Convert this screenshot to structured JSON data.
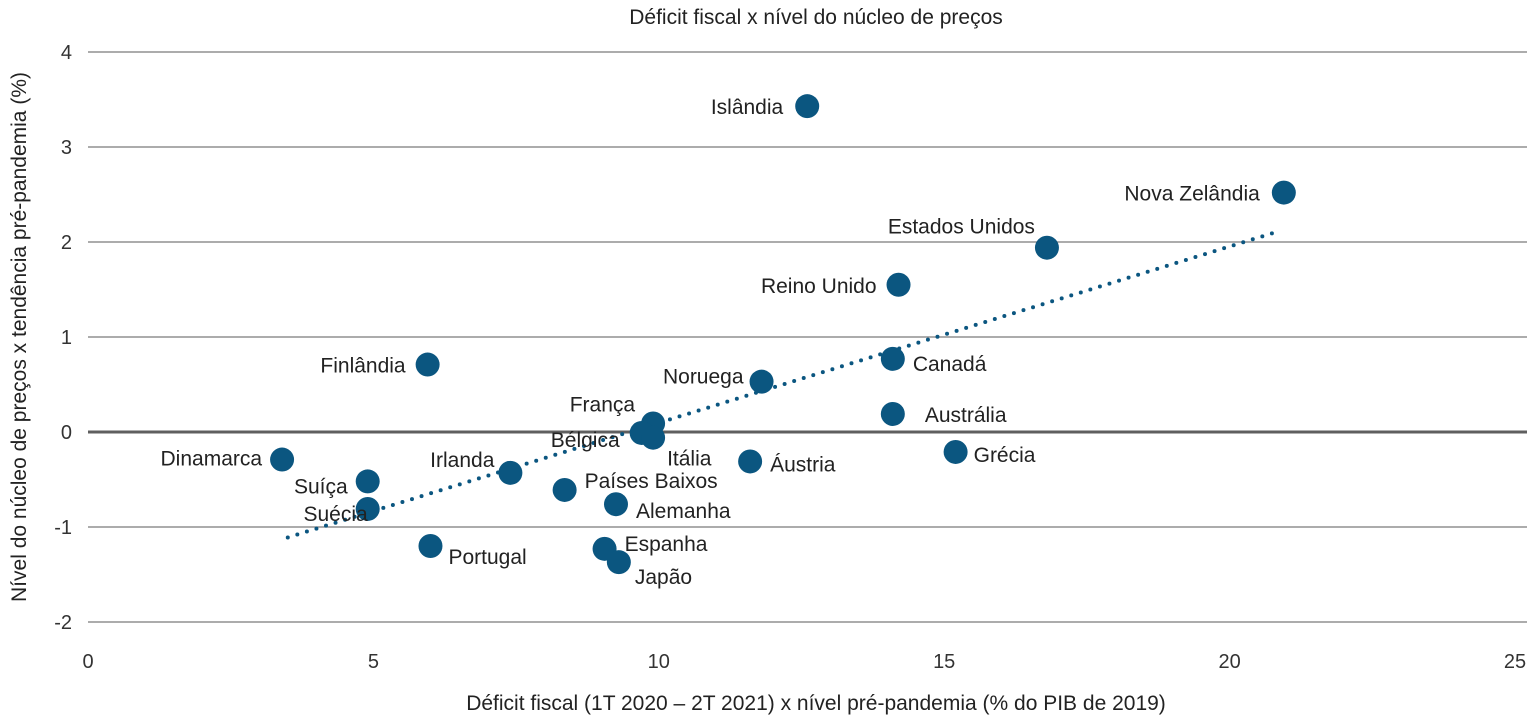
{
  "chart_data": {
    "type": "scatter",
    "title": "Déficit fiscal x nível do núcleo de preços",
    "xlabel": "Déficit fiscal (1T 2020 – 2T 2021) x nível pré-pandemia (% do PIB de 2019)",
    "ylabel": "Nível do núcleo de preços x tendência pré-pandemia (%)",
    "xlim": [
      0,
      25
    ],
    "ylim": [
      -2,
      4
    ],
    "xticks": [
      "0",
      "5",
      "10",
      "15",
      "20",
      "25"
    ],
    "yticks": [
      "-2",
      "-1",
      "0",
      "1",
      "2",
      "3",
      "4"
    ],
    "grid": "horizontal",
    "marker_color": "#0b5680",
    "trendline": {
      "style": "dotted",
      "x": [
        3.5,
        20.9
      ],
      "y": [
        -1.11,
        2.12
      ]
    },
    "points": [
      {
        "label": "Islândia",
        "x": 12.6,
        "y": 3.43
      },
      {
        "label": "Nova Zelândia",
        "x": 20.95,
        "y": 2.52
      },
      {
        "label": "Estados Unidos",
        "x": 16.8,
        "y": 1.94
      },
      {
        "label": "Reino Unido",
        "x": 14.2,
        "y": 1.55
      },
      {
        "label": "Finlândia",
        "x": 5.95,
        "y": 0.71
      },
      {
        "label": "Canadá",
        "x": 14.1,
        "y": 0.77
      },
      {
        "label": "Noruega",
        "x": 11.8,
        "y": 0.53
      },
      {
        "label": "França",
        "x": 9.9,
        "y": 0.09
      },
      {
        "label": "Bélgica",
        "x": 9.7,
        "y": -0.01
      },
      {
        "label": "Itália",
        "x": 9.9,
        "y": -0.06
      },
      {
        "label": "Austrália",
        "x": 14.1,
        "y": 0.19
      },
      {
        "label": "Grécia",
        "x": 15.2,
        "y": -0.21
      },
      {
        "label": "Áustria",
        "x": 11.6,
        "y": -0.31
      },
      {
        "label": "Dinamarca",
        "x": 3.4,
        "y": -0.29
      },
      {
        "label": "Irlanda",
        "x": 7.4,
        "y": -0.43
      },
      {
        "label": "Suíça",
        "x": 4.9,
        "y": -0.52
      },
      {
        "label": "Países Baixos",
        "x": 8.35,
        "y": -0.61
      },
      {
        "label": "Alemanha",
        "x": 9.25,
        "y": -0.76
      },
      {
        "label": "Suécia",
        "x": 4.9,
        "y": -0.81
      },
      {
        "label": "Portugal",
        "x": 6.0,
        "y": -1.2
      },
      {
        "label": "Espanha",
        "x": 9.05,
        "y": -1.23
      },
      {
        "label": "Japão",
        "x": 9.3,
        "y": -1.37
      }
    ]
  }
}
